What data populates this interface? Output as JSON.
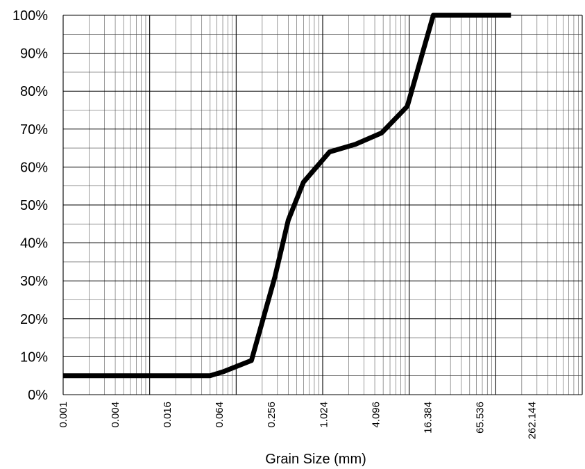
{
  "chart_data": {
    "type": "line",
    "title": "",
    "xlabel": "Grain Size (mm)",
    "ylabel": "",
    "x_scale": "log",
    "xlim": [
      0.001,
      1000
    ],
    "ylim": [
      0,
      100
    ],
    "grid": true,
    "legend": "none",
    "x_tick_labels": [
      "0.001",
      "0.004",
      "0.016",
      "0.064",
      "0.256",
      "1.024",
      "4.096",
      "16.384",
      "65.536",
      "262.144"
    ],
    "y_tick_labels": [
      "0%",
      "10%",
      "20%",
      "30%",
      "40%",
      "50%",
      "60%",
      "70%",
      "80%",
      "90%",
      "100%"
    ],
    "series": [
      {
        "color": "#000000",
        "x": [
          0.001,
          0.05,
          0.07,
          0.15,
          0.28,
          0.4,
          0.6,
          1.2,
          2.4,
          4.8,
          9.5,
          19,
          40,
          150
        ],
        "y": [
          5,
          5,
          6,
          9,
          31,
          46,
          56,
          64,
          66,
          69,
          76,
          100,
          100,
          100
        ]
      }
    ]
  }
}
